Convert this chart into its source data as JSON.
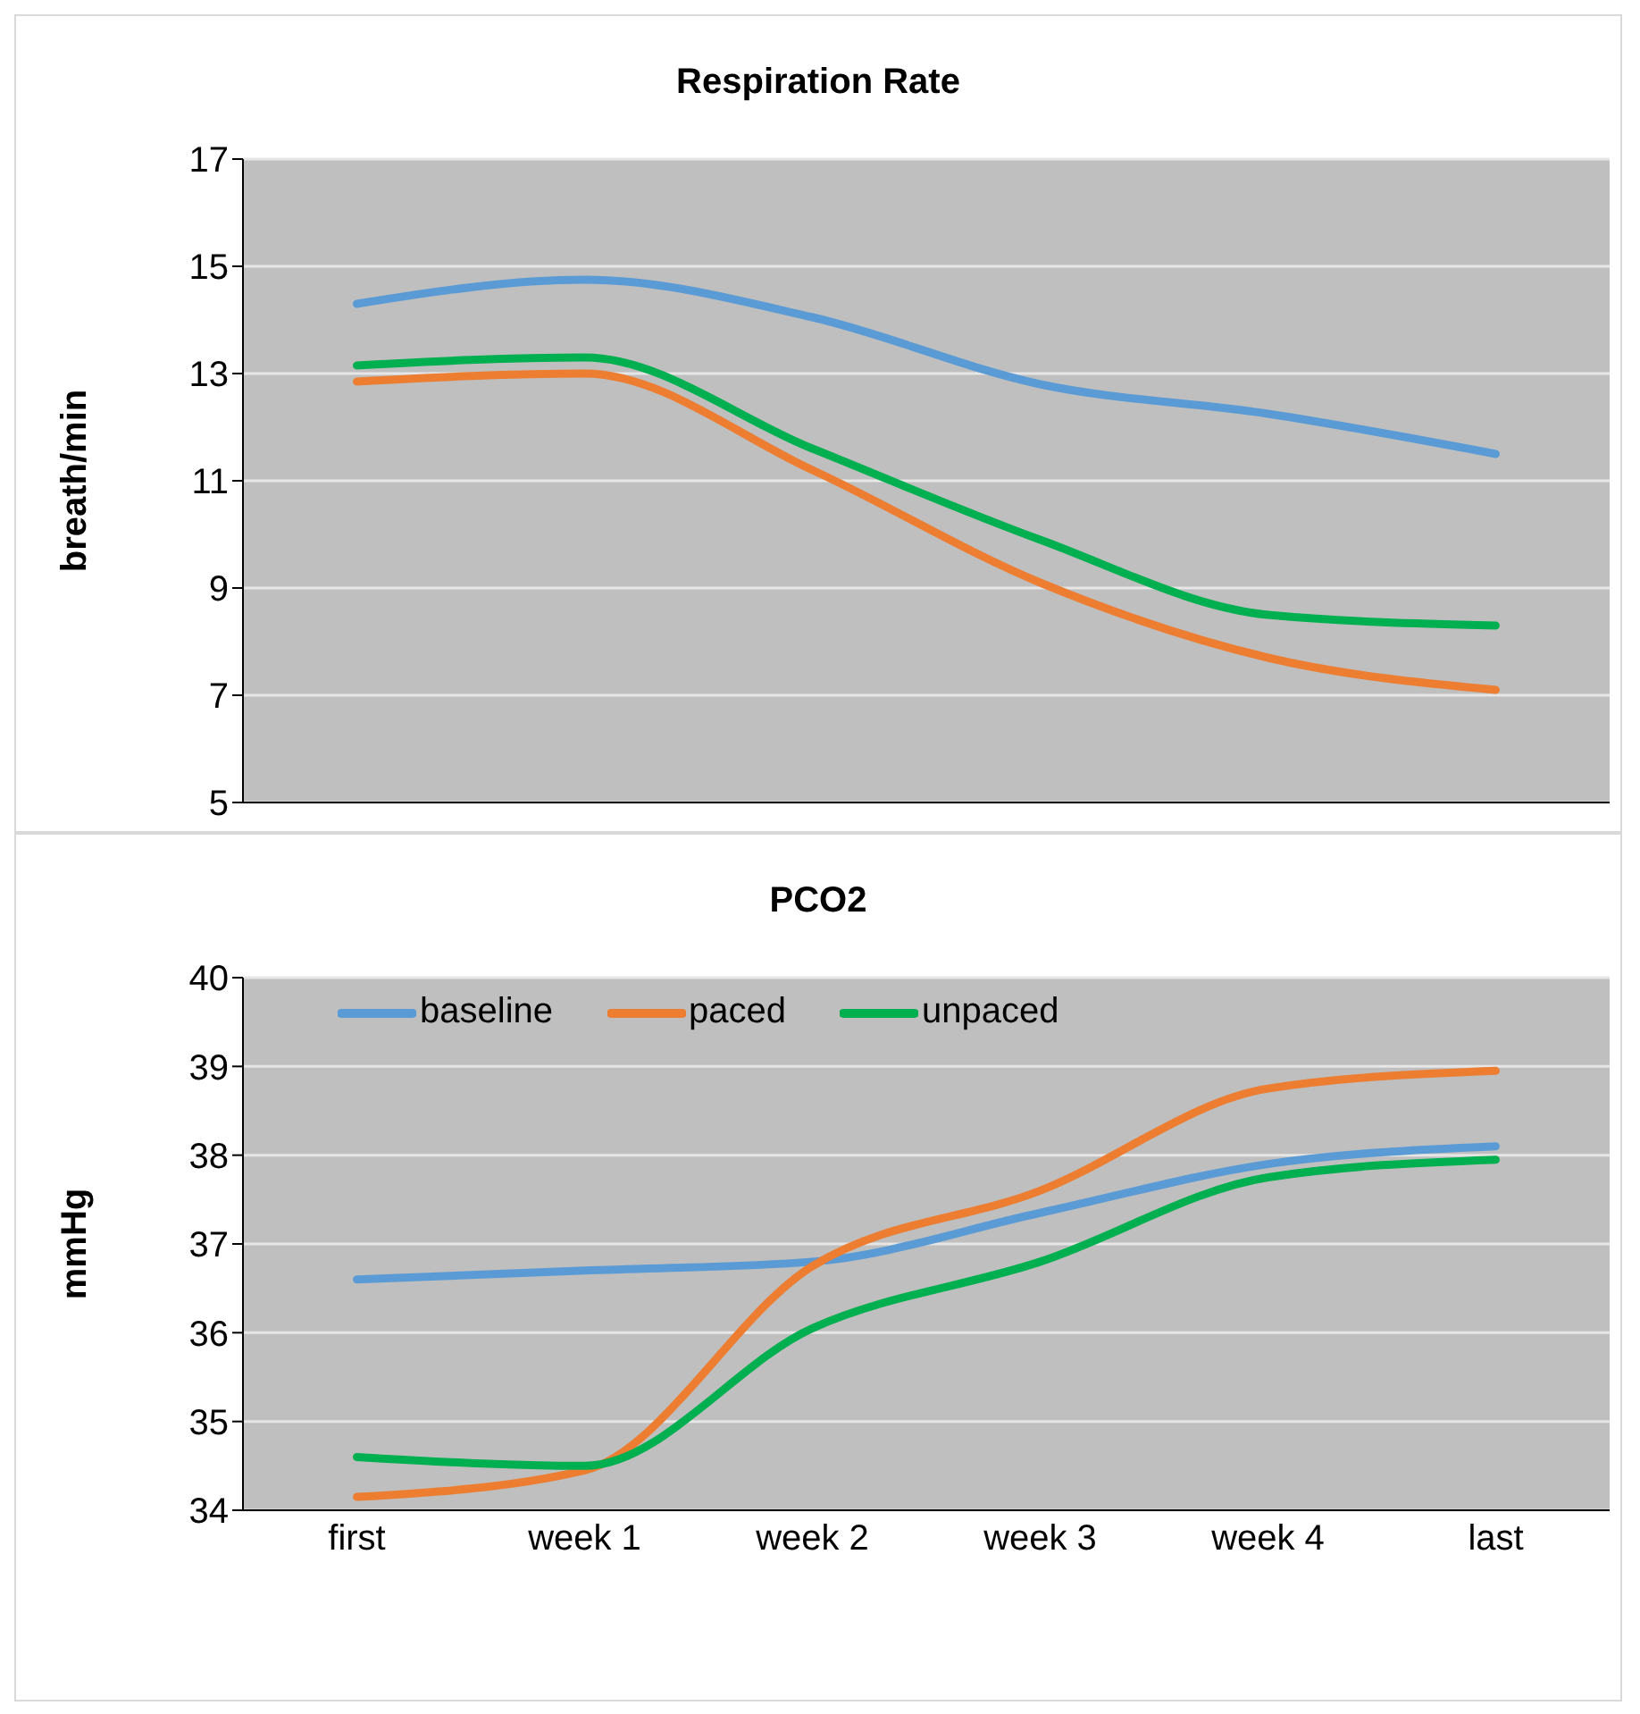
{
  "chart_data": [
    {
      "type": "line",
      "title": "Respiration Rate",
      "ylabel": "breath/min",
      "categories": [
        null,
        null,
        null,
        null,
        null,
        null
      ],
      "tick_labels": "y",
      "ylim": [
        5,
        17
      ],
      "yticks": [
        5,
        7,
        9,
        11,
        13,
        15,
        17
      ],
      "grid": "y",
      "legend": false,
      "series": [
        {
          "color": "#5b9bd5",
          "values": [
            14.3,
            14.75,
            14.05,
            12.8,
            12.25,
            11.5
          ]
        },
        {
          "color": "#ed7d31",
          "values": [
            12.85,
            13.0,
            11.2,
            9.1,
            7.7,
            7.1
          ]
        },
        {
          "color": "#00b050",
          "values": [
            13.15,
            13.3,
            11.6,
            9.9,
            8.5,
            8.3
          ]
        }
      ]
    },
    {
      "type": "line",
      "title": "PCO2",
      "ylabel": "mmHg",
      "categories": [
        "first",
        "week 1",
        "week 2",
        "week 3",
        "week 4",
        "last"
      ],
      "ylim": [
        34,
        40
      ],
      "yticks": [
        34,
        35,
        36,
        37,
        38,
        39,
        40
      ],
      "grid": "y",
      "legend": "top left",
      "series": [
        {
          "name": "baseline",
          "color": "#5b9bd5",
          "values": [
            36.6,
            36.7,
            36.8,
            37.35,
            37.9,
            38.1
          ]
        },
        {
          "name": "paced",
          "color": "#ed7d31",
          "values": [
            34.15,
            34.45,
            36.75,
            37.6,
            38.75,
            38.95
          ]
        },
        {
          "name": "unpaced",
          "color": "#00b050",
          "values": [
            34.6,
            34.5,
            36.05,
            36.8,
            37.75,
            37.95
          ]
        }
      ]
    }
  ]
}
